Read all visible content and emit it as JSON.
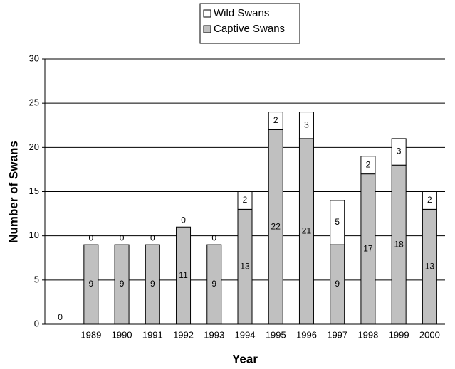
{
  "chart_data": {
    "type": "stacked-bar",
    "x_label": "Year",
    "y_label": "Number of Swans",
    "categories": [
      null,
      "1989",
      "1990",
      "1991",
      "1992",
      "1993",
      "1994",
      "1995",
      "1996",
      "1997",
      "1998",
      "1999",
      "2000"
    ],
    "series": [
      {
        "name": "Captive Swans",
        "color": "#c0c0c0",
        "values": [
          null,
          9,
          9,
          9,
          11,
          9,
          13,
          22,
          21,
          9,
          17,
          18,
          13
        ]
      },
      {
        "name": "Wild Swans",
        "color": "#ffffff",
        "values": [
          0,
          0,
          0,
          0,
          0,
          0,
          2,
          2,
          3,
          5,
          2,
          3,
          2
        ]
      }
    ],
    "ylim": [
      0,
      30
    ],
    "yticks": [
      0,
      5,
      10,
      15,
      20,
      25,
      30
    ],
    "grid": true
  }
}
